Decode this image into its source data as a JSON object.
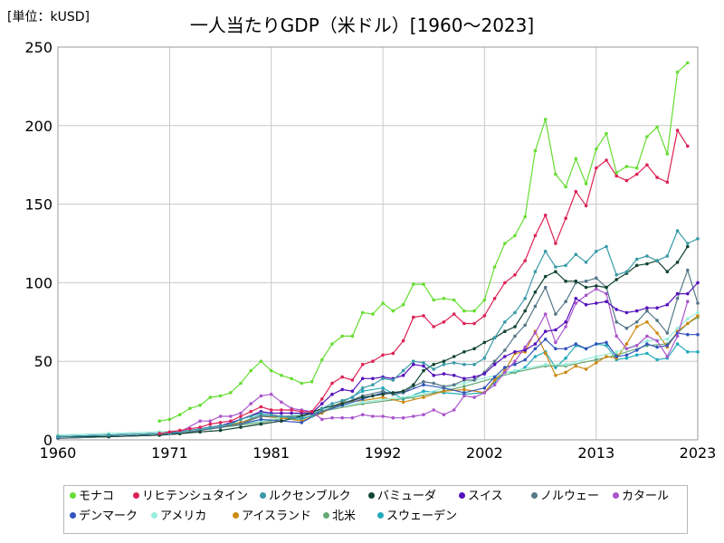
{
  "unit_label": "[単位：kUSD]",
  "title": "一人当たりGDP（米ドル）[1960～2023]",
  "chart_data": {
    "type": "line",
    "xlim": [
      1960,
      2023
    ],
    "ylim": [
      0,
      250
    ],
    "xticks": [
      "1960",
      "1971",
      "1981",
      "1992",
      "2002",
      "2013",
      "2023"
    ],
    "yticks": [
      "0",
      "50",
      "100",
      "150",
      "200",
      "250"
    ],
    "grid": true,
    "legend_position": "bottom",
    "series": [
      {
        "name": "モナコ",
        "color": "#66dd33",
        "x": [
          1970,
          1971,
          1972,
          1973,
          1974,
          1975,
          1976,
          1977,
          1978,
          1979,
          1980,
          1981,
          1982,
          1983,
          1984,
          1985,
          1986,
          1987,
          1988,
          1989,
          1990,
          1991,
          1992,
          1993,
          1994,
          1995,
          1996,
          1997,
          1998,
          1999,
          2000,
          2001,
          2002,
          2003,
          2004,
          2005,
          2006,
          2007,
          2008,
          2009,
          2010,
          2011,
          2012,
          2013,
          2014,
          2015,
          2016,
          2017,
          2018,
          2019,
          2020,
          2021,
          2022
        ],
        "y": [
          12,
          13,
          16,
          20,
          22,
          27,
          28,
          30,
          36,
          44,
          50,
          44,
          41,
          39,
          36,
          37,
          51,
          61,
          66,
          66,
          81,
          80,
          87,
          82,
          86,
          99,
          99,
          89,
          90,
          89,
          82,
          82,
          89,
          110,
          125,
          130,
          142,
          184,
          204,
          169,
          161,
          179,
          163,
          185,
          195,
          170,
          174,
          173,
          193,
          199,
          182,
          234,
          240
        ]
      },
      {
        "name": "リヒテンシュタイン",
        "color": "#dd2255",
        "x": [
          1970,
          1971,
          1972,
          1973,
          1974,
          1975,
          1976,
          1977,
          1978,
          1979,
          1980,
          1981,
          1982,
          1983,
          1984,
          1985,
          1986,
          1987,
          1988,
          1989,
          1990,
          1991,
          1992,
          1993,
          1994,
          1995,
          1996,
          1997,
          1998,
          1999,
          2000,
          2001,
          2002,
          2003,
          2004,
          2005,
          2006,
          2007,
          2008,
          2009,
          2010,
          2011,
          2012,
          2013,
          2014,
          2015,
          2016,
          2017,
          2018,
          2019,
          2020,
          2021,
          2022
        ],
        "y": [
          4,
          5,
          6,
          7,
          8,
          10,
          11,
          12,
          15,
          18,
          21,
          19,
          19,
          19,
          18,
          18,
          26,
          36,
          40,
          38,
          48,
          50,
          54,
          55,
          63,
          78,
          79,
          72,
          75,
          80,
          74,
          74,
          79,
          90,
          100,
          105,
          114,
          130,
          143,
          125,
          141,
          158,
          149,
          173,
          178,
          168,
          165,
          169,
          175,
          167,
          164,
          197,
          187
        ]
      },
      {
        "name": "ルクセンブルク",
        "color": "#3a9aa8",
        "x": [
          1960,
          1965,
          1970,
          1971,
          1972,
          1973,
          1974,
          1975,
          1976,
          1977,
          1978,
          1979,
          1980,
          1981,
          1982,
          1983,
          1984,
          1985,
          1986,
          1987,
          1988,
          1989,
          1990,
          1991,
          1992,
          1993,
          1994,
          1995,
          1996,
          1997,
          1998,
          1999,
          2000,
          2001,
          2002,
          2003,
          2004,
          2005,
          2006,
          2007,
          2008,
          2009,
          2010,
          2011,
          2012,
          2013,
          2014,
          2015,
          2016,
          2017,
          2018,
          2019,
          2020,
          2021,
          2022,
          2023
        ],
        "y": [
          2,
          3,
          4,
          4,
          5,
          6,
          7,
          8,
          9,
          10,
          13,
          15,
          17,
          16,
          15,
          14,
          14,
          15,
          20,
          23,
          25,
          27,
          33,
          35,
          39,
          38,
          44,
          50,
          49,
          45,
          48,
          49,
          48,
          48,
          52,
          65,
          75,
          81,
          90,
          107,
          120,
          110,
          111,
          118,
          113,
          120,
          123,
          105,
          107,
          115,
          117,
          114,
          117,
          133,
          125,
          128
        ]
      },
      {
        "name": "バミューダ",
        "color": "#114433",
        "x": [
          1960,
          1965,
          1970,
          1972,
          1974,
          1976,
          1978,
          1980,
          1982,
          1984,
          1986,
          1988,
          1990,
          1991,
          1992,
          1993,
          1994,
          1995,
          1996,
          1997,
          1998,
          1999,
          2000,
          2001,
          2002,
          2003,
          2004,
          2005,
          2006,
          2007,
          2008,
          2009,
          2010,
          2011,
          2012,
          2013,
          2014,
          2015,
          2016,
          2017,
          2018,
          2019,
          2020,
          2021,
          2022
        ],
        "y": [
          2,
          2,
          3,
          4,
          5,
          6,
          8,
          10,
          12,
          15,
          20,
          23,
          27,
          28,
          29,
          30,
          31,
          35,
          44,
          48,
          50,
          53,
          56,
          58,
          62,
          65,
          69,
          72,
          82,
          94,
          104,
          107,
          101,
          101,
          97,
          98,
          97,
          102,
          106,
          111,
          112,
          114,
          107,
          113,
          123
        ]
      },
      {
        "name": "スイス",
        "color": "#5511bb",
        "x": [
          1960,
          1965,
          1970,
          1972,
          1974,
          1976,
          1978,
          1980,
          1981,
          1982,
          1983,
          1984,
          1985,
          1986,
          1987,
          1988,
          1989,
          1990,
          1991,
          1992,
          1993,
          1994,
          1995,
          1996,
          1997,
          1998,
          1999,
          2000,
          2001,
          2002,
          2003,
          2004,
          2005,
          2006,
          2007,
          2008,
          2009,
          2010,
          2011,
          2012,
          2013,
          2014,
          2015,
          2016,
          2017,
          2018,
          2019,
          2020,
          2021,
          2022,
          2023
        ],
        "y": [
          2,
          3,
          4,
          5,
          7,
          9,
          13,
          18,
          17,
          17,
          17,
          17,
          17,
          23,
          29,
          32,
          31,
          39,
          39,
          40,
          39,
          41,
          48,
          47,
          41,
          42,
          41,
          39,
          40,
          42,
          48,
          53,
          56,
          57,
          61,
          69,
          70,
          75,
          90,
          86,
          87,
          88,
          83,
          81,
          82,
          84,
          84,
          86,
          93,
          93,
          100
        ]
      },
      {
        "name": "ノルウェー",
        "color": "#557788",
        "x": [
          1960,
          1965,
          1970,
          1972,
          1974,
          1976,
          1978,
          1980,
          1982,
          1984,
          1986,
          1988,
          1990,
          1992,
          1993,
          1994,
          1995,
          1996,
          1997,
          1998,
          1999,
          2000,
          2001,
          2002,
          2003,
          2004,
          2005,
          2006,
          2007,
          2008,
          2009,
          2010,
          2011,
          2012,
          2013,
          2014,
          2015,
          2016,
          2017,
          2018,
          2019,
          2020,
          2021,
          2022,
          2023
        ],
        "y": [
          1,
          2,
          3,
          4,
          6,
          8,
          10,
          15,
          15,
          15,
          18,
          23,
          28,
          31,
          29,
          30,
          34,
          37,
          36,
          34,
          35,
          38,
          38,
          43,
          50,
          57,
          66,
          73,
          85,
          97,
          80,
          88,
          100,
          101,
          103,
          97,
          75,
          71,
          75,
          82,
          76,
          68,
          90,
          108,
          87
        ]
      },
      {
        "name": "カタール",
        "color": "#aa55cc",
        "x": [
          1970,
          1972,
          1974,
          1975,
          1976,
          1977,
          1978,
          1979,
          1980,
          1981,
          1982,
          1983,
          1984,
          1985,
          1986,
          1987,
          1988,
          1989,
          1990,
          1991,
          1992,
          1993,
          1994,
          1995,
          1996,
          1997,
          1998,
          1999,
          2000,
          2001,
          2002,
          2003,
          2004,
          2005,
          2006,
          2007,
          2008,
          2009,
          2010,
          2011,
          2012,
          2013,
          2014,
          2015,
          2016,
          2017,
          2018,
          2019,
          2020,
          2021,
          2022
        ],
        "y": [
          3,
          5,
          12,
          12,
          15,
          15,
          17,
          23,
          28,
          29,
          24,
          20,
          19,
          18,
          13,
          14,
          14,
          14,
          16,
          15,
          15,
          14,
          14,
          15,
          16,
          19,
          16,
          19,
          28,
          27,
          30,
          35,
          43,
          50,
          59,
          68,
          80,
          62,
          72,
          87,
          92,
          96,
          93,
          66,
          58,
          60,
          66,
          63,
          53,
          66,
          88
        ]
      },
      {
        "name": "デンマーク",
        "color": "#3355bb",
        "x": [
          1960,
          1965,
          1970,
          1972,
          1974,
          1976,
          1978,
          1980,
          1982,
          1984,
          1986,
          1988,
          1990,
          1992,
          1994,
          1996,
          1998,
          2000,
          2002,
          2003,
          2004,
          2005,
          2006,
          2007,
          2008,
          2009,
          2010,
          2011,
          2012,
          2013,
          2014,
          2015,
          2016,
          2017,
          2018,
          2019,
          2020,
          2021,
          2022,
          2023
        ],
        "y": [
          1,
          2,
          3,
          4,
          6,
          8,
          10,
          13,
          12,
          11,
          18,
          22,
          26,
          30,
          30,
          35,
          33,
          30,
          33,
          40,
          46,
          48,
          51,
          58,
          64,
          58,
          58,
          61,
          58,
          61,
          62,
          53,
          54,
          57,
          61,
          59,
          60,
          68,
          67,
          67
        ]
      },
      {
        "name": "アメリカ",
        "color": "#99eedd",
        "x": [
          1960,
          1965,
          1970,
          1975,
          1980,
          1985,
          1990,
          1995,
          2000,
          2005,
          2008,
          2010,
          2013,
          2015,
          2018,
          2020,
          2021,
          2022,
          2023
        ],
        "y": [
          3,
          4,
          5,
          7,
          12,
          18,
          24,
          28,
          36,
          44,
          48,
          48,
          53,
          56,
          63,
          64,
          71,
          77,
          81
        ]
      },
      {
        "name": "アイスランド",
        "color": "#cc8811",
        "x": [
          1960,
          1965,
          1970,
          1972,
          1974,
          1976,
          1978,
          1980,
          1982,
          1984,
          1986,
          1988,
          1990,
          1992,
          1994,
          1996,
          1998,
          2000,
          2002,
          2003,
          2004,
          2005,
          2006,
          2007,
          2008,
          2009,
          2010,
          2011,
          2012,
          2013,
          2014,
          2015,
          2016,
          2017,
          2018,
          2019,
          2020,
          2021,
          2022,
          2023
        ],
        "y": [
          1,
          2,
          3,
          4,
          6,
          8,
          11,
          15,
          14,
          12,
          17,
          24,
          25,
          27,
          24,
          27,
          31,
          32,
          30,
          38,
          44,
          55,
          56,
          69,
          55,
          41,
          43,
          47,
          45,
          49,
          53,
          52,
          61,
          72,
          75,
          68,
          59,
          69,
          74,
          79
        ]
      },
      {
        "name": "北米",
        "color": "#66aa77",
        "x": [
          1960,
          1965,
          1970,
          1975,
          1980,
          1985,
          1990,
          1995,
          2000,
          2005,
          2008,
          2010,
          2013,
          2015,
          2018,
          2020,
          2021,
          2022,
          2023
        ],
        "y": [
          3,
          4,
          5,
          7,
          11,
          17,
          23,
          27,
          34,
          43,
          47,
          47,
          51,
          54,
          60,
          61,
          68,
          74,
          78
        ]
      },
      {
        "name": "スウェーデン",
        "color": "#22aabb",
        "x": [
          1960,
          1965,
          1970,
          1972,
          1974,
          1976,
          1978,
          1980,
          1982,
          1984,
          1986,
          1988,
          1990,
          1992,
          1994,
          1996,
          1998,
          2000,
          2002,
          2003,
          2004,
          2005,
          2006,
          2007,
          2008,
          2009,
          2010,
          2011,
          2012,
          2013,
          2014,
          2015,
          2016,
          2017,
          2018,
          2019,
          2020,
          2021,
          2022,
          2023
        ],
        "y": [
          2,
          3,
          4,
          5,
          7,
          9,
          11,
          16,
          14,
          13,
          18,
          24,
          31,
          33,
          26,
          31,
          30,
          29,
          30,
          37,
          43,
          43,
          46,
          53,
          56,
          46,
          52,
          60,
          58,
          61,
          60,
          51,
          52,
          54,
          55,
          51,
          52,
          61,
          56,
          56
        ]
      }
    ]
  }
}
